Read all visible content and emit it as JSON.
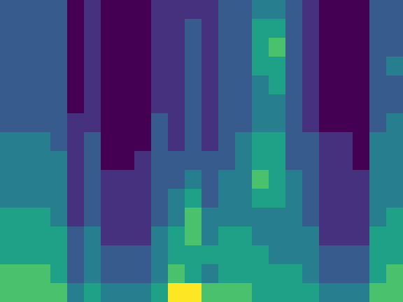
{
  "chart_data": {
    "type": "heatmap",
    "tick_labels": false,
    "cells": [
      [
        5,
        5,
        5,
        5,
        3,
        4,
        3,
        3,
        3,
        4,
        4,
        4,
        4,
        5,
        5,
        6,
        6,
        5,
        4,
        3,
        3,
        3,
        5,
        5
      ],
      [
        5,
        5,
        5,
        5,
        3,
        4,
        3,
        3,
        3,
        4,
        4,
        5,
        4,
        5,
        5,
        7,
        7,
        5,
        4,
        3,
        3,
        3,
        5,
        5
      ],
      [
        5,
        5,
        5,
        5,
        3,
        4,
        3,
        3,
        3,
        4,
        4,
        5,
        4,
        5,
        5,
        7,
        8,
        5,
        4,
        3,
        3,
        3,
        5,
        5
      ],
      [
        5,
        5,
        5,
        5,
        3,
        4,
        3,
        3,
        3,
        4,
        4,
        5,
        4,
        5,
        5,
        7,
        7,
        5,
        4,
        3,
        3,
        3,
        5,
        6
      ],
      [
        5,
        5,
        5,
        5,
        3,
        4,
        3,
        3,
        3,
        4,
        4,
        5,
        4,
        5,
        5,
        6,
        7,
        5,
        4,
        3,
        3,
        3,
        5,
        5
      ],
      [
        5,
        5,
        5,
        5,
        3,
        4,
        3,
        3,
        3,
        4,
        4,
        5,
        4,
        5,
        5,
        6,
        6,
        5,
        4,
        3,
        3,
        3,
        5,
        5
      ],
      [
        5,
        5,
        5,
        5,
        4,
        4,
        3,
        3,
        3,
        5,
        4,
        5,
        4,
        5,
        5,
        6,
        6,
        5,
        4,
        3,
        3,
        3,
        5,
        6
      ],
      [
        6,
        6,
        6,
        5,
        4,
        5,
        3,
        3,
        3,
        5,
        4,
        5,
        4,
        5,
        6,
        7,
        7,
        5,
        5,
        4,
        4,
        3,
        6,
        6
      ],
      [
        6,
        6,
        6,
        6,
        4,
        5,
        3,
        3,
        4,
        5,
        5,
        5,
        5,
        5,
        6,
        7,
        7,
        5,
        5,
        4,
        4,
        3,
        6,
        6
      ],
      [
        6,
        6,
        6,
        6,
        4,
        5,
        4,
        4,
        4,
        5,
        5,
        6,
        5,
        6,
        6,
        8,
        7,
        6,
        5,
        4,
        4,
        4,
        6,
        6
      ],
      [
        6,
        6,
        6,
        6,
        4,
        5,
        4,
        4,
        4,
        5,
        6,
        7,
        5,
        6,
        6,
        7,
        7,
        6,
        5,
        4,
        4,
        4,
        6,
        6
      ],
      [
        7,
        7,
        7,
        6,
        4,
        5,
        4,
        4,
        4,
        5,
        6,
        8,
        6,
        6,
        6,
        6,
        6,
        6,
        5,
        4,
        4,
        4,
        6,
        7
      ],
      [
        7,
        7,
        7,
        7,
        5,
        6,
        4,
        4,
        4,
        6,
        7,
        8,
        6,
        7,
        7,
        6,
        6,
        6,
        6,
        4,
        4,
        4,
        7,
        7
      ],
      [
        7,
        7,
        7,
        7,
        5,
        6,
        5,
        5,
        5,
        6,
        7,
        7,
        7,
        7,
        7,
        7,
        6,
        6,
        6,
        5,
        5,
        5,
        7,
        7
      ],
      [
        8,
        8,
        8,
        7,
        5,
        6,
        5,
        5,
        5,
        6,
        8,
        7,
        6,
        7,
        7,
        7,
        7,
        7,
        6,
        5,
        5,
        5,
        7,
        8
      ],
      [
        8,
        8,
        8,
        8,
        6,
        7,
        6,
        6,
        6,
        7,
        10,
        10,
        8,
        8,
        8,
        7,
        7,
        7,
        7,
        6,
        6,
        6,
        8,
        8
      ]
    ]
  }
}
